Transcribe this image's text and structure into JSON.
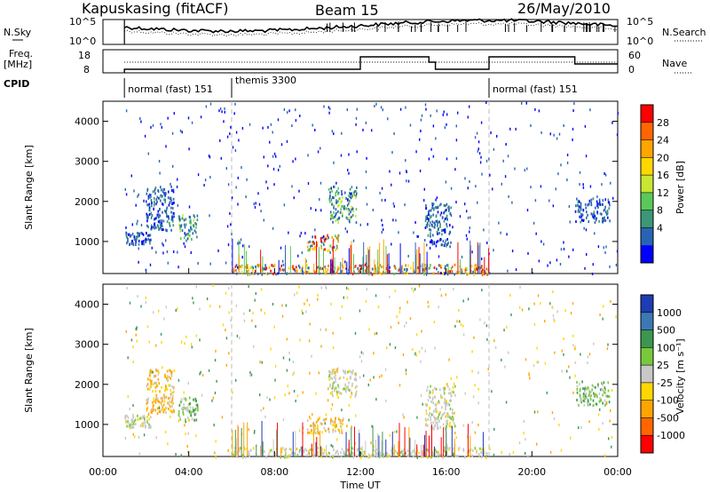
{
  "header": {
    "radar": "Kapuskasing (fitACF)",
    "beam": "Beam 15",
    "date": "26/May/2010"
  },
  "top_panels": {
    "nsky_label": "N.Sky",
    "nsky_ticks": [
      "10^5",
      "10^0"
    ],
    "nsearch_label": "N.Search",
    "nsearch_ticks": [
      "10^5",
      "10^0"
    ],
    "freq_label_1": "Freq.",
    "freq_label_2": "[MHz]",
    "freq_ticks": [
      "18",
      "8"
    ],
    "nave_label": "Nave",
    "nave_ticks": [
      "60",
      "0"
    ],
    "cpid_label": "CPID",
    "cpid_segments": [
      {
        "label": "normal (fast) 151",
        "start_hour": 1.0,
        "end_hour": 6.0
      },
      {
        "label": "themis 3300",
        "start_hour": 6.0,
        "end_hour": 18.0
      },
      {
        "label": "normal (fast) 151",
        "start_hour": 18.0,
        "end_hour": 24.0
      }
    ]
  },
  "chart_data": [
    {
      "type": "heatmap",
      "panel": "power",
      "ylabel": "Slant Range [km]",
      "ylim": [
        200,
        4500
      ],
      "yticks": [
        "1000",
        "2000",
        "3000",
        "4000"
      ],
      "xlim": [
        0,
        24
      ],
      "colorbar": {
        "label": "Power [dB]",
        "ticks": [
          "28",
          "24",
          "20",
          "16",
          "12",
          "8",
          "4"
        ],
        "colors": [
          "#ff0000",
          "#ff6600",
          "#ffa500",
          "#ffd700",
          "#c8e632",
          "#5ac85a",
          "#3c9678",
          "#2864b4",
          "#0000ff"
        ]
      },
      "echo_regions": [
        {
          "t0": 1.0,
          "t1": 2.2,
          "r0": 950,
          "r1": 1250,
          "level": "low"
        },
        {
          "t0": 2.0,
          "t1": 3.3,
          "r0": 1300,
          "r1": 2400,
          "level": "low"
        },
        {
          "t0": 3.5,
          "t1": 4.4,
          "r0": 1050,
          "r1": 1700,
          "level": "medium"
        },
        {
          "t0": 9.5,
          "t1": 11.0,
          "r0": 800,
          "r1": 1200,
          "level": "high"
        },
        {
          "t0": 10.5,
          "t1": 11.8,
          "r0": 1500,
          "r1": 2400,
          "level": "medium"
        },
        {
          "t0": 15.0,
          "t1": 16.2,
          "r0": 900,
          "r1": 2000,
          "level": "low"
        },
        {
          "t0": 22.0,
          "t1": 23.6,
          "r0": 1500,
          "r1": 2100,
          "level": "low"
        },
        {
          "t0": 6.0,
          "t1": 18.0,
          "r0": 200,
          "r1": 450,
          "level": "high"
        }
      ]
    },
    {
      "type": "heatmap",
      "panel": "velocity",
      "ylabel": "Slant Range [km]",
      "ylim": [
        200,
        4500
      ],
      "yticks": [
        "1000",
        "2000",
        "3000",
        "4000"
      ],
      "xlabel": "Time UT",
      "xticks": [
        "00:00",
        "04:00",
        "08:00",
        "12:00",
        "16:00",
        "20:00",
        "00:00"
      ],
      "xlim": [
        0,
        24
      ],
      "colorbar": {
        "label": "Velocity [m s⁻¹]",
        "ticks": [
          "1000",
          "500",
          "100",
          "25",
          "-25",
          "-100",
          "-500",
          "-1000"
        ],
        "colors": [
          "#1e3cb4",
          "#3c78b4",
          "#3c9650",
          "#78c83c",
          "#c8c8c8",
          "#ffd700",
          "#ffa500",
          "#ff6600",
          "#ff0000"
        ]
      },
      "echo_regions": [
        {
          "t0": 1.0,
          "t1": 2.2,
          "r0": 950,
          "r1": 1250,
          "level": "ground"
        },
        {
          "t0": 2.0,
          "t1": 3.3,
          "r0": 1300,
          "r1": 2400,
          "level": "neg"
        },
        {
          "t0": 3.5,
          "t1": 4.4,
          "r0": 1100,
          "r1": 1700,
          "level": "pos"
        },
        {
          "t0": 9.5,
          "t1": 11.2,
          "r0": 800,
          "r1": 1200,
          "level": "neg"
        },
        {
          "t0": 10.5,
          "t1": 11.8,
          "r0": 1700,
          "r1": 2400,
          "level": "ground"
        },
        {
          "t0": 15.0,
          "t1": 16.4,
          "r0": 900,
          "r1": 2000,
          "level": "ground"
        },
        {
          "t0": 22.0,
          "t1": 23.6,
          "r0": 1500,
          "r1": 2100,
          "level": "pos"
        },
        {
          "t0": 6.0,
          "t1": 18.0,
          "r0": 200,
          "r1": 450,
          "level": "ground"
        }
      ]
    }
  ]
}
